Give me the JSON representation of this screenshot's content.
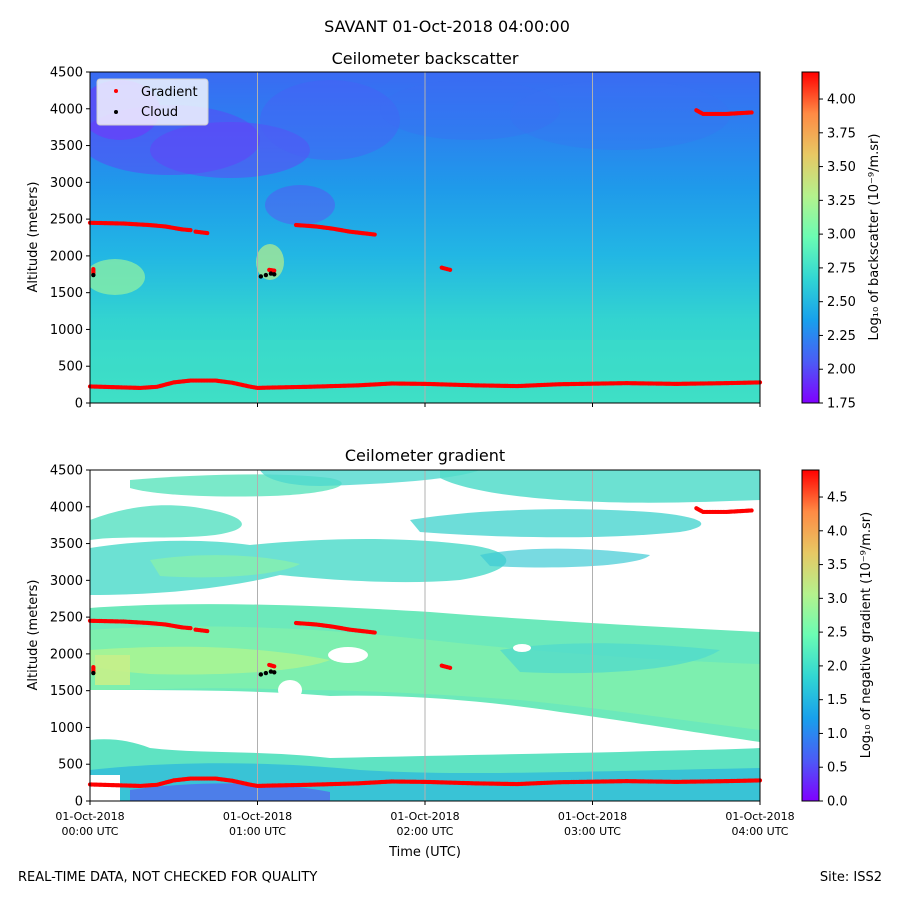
{
  "suptitle": "SAVANT 01-Oct-2018 04:00:00",
  "footer_left": "REAL-TIME DATA, NOT CHECKED FOR QUALITY",
  "footer_right": "Site: ISS2",
  "colors": {
    "gradient_marker": "#ff0000",
    "cloud_marker": "#000000",
    "gridline": "#b0b0b0",
    "colormap": [
      "#8000ff",
      "#4b5cf6",
      "#18a0ec",
      "#31d6d3",
      "#6afcb4",
      "#b4f28d",
      "#e7c864",
      "#ff8a44",
      "#ff0000"
    ]
  },
  "chart_data": [
    {
      "type": "heatmap",
      "title": "Ceilometer backscatter",
      "xlabel": "",
      "ylabel": "Altitude (meters)",
      "ylim": [
        0,
        4500
      ],
      "xlim_hours": [
        0,
        4
      ],
      "yticks": [
        "0",
        "500",
        "1000",
        "1500",
        "2000",
        "2500",
        "3000",
        "3500",
        "4000",
        "4500"
      ],
      "xticks": [
        0,
        1,
        2,
        3,
        4
      ],
      "grid_x": true,
      "colorbar": {
        "label": "Log₁₀ of backscatter (10⁻⁹/m.sr)",
        "range": [
          1.75,
          4.2
        ],
        "ticks": [
          "1.75",
          "2.00",
          "2.25",
          "2.50",
          "2.75",
          "3.00",
          "3.25",
          "3.50",
          "3.75",
          "4.00"
        ]
      },
      "legend": {
        "placement": "upper-left",
        "entries": [
          {
            "label": "Gradient",
            "color": "#ff0000"
          },
          {
            "label": "Cloud",
            "color": "#000000"
          }
        ]
      },
      "series": [
        {
          "name": "Gradient (boundary layer)",
          "points": [
            [
              0.0,
              225
            ],
            [
              0.15,
              215
            ],
            [
              0.3,
              205
            ],
            [
              0.4,
              220
            ],
            [
              0.5,
              280
            ],
            [
              0.6,
              305
            ],
            [
              0.75,
              305
            ],
            [
              0.85,
              275
            ],
            [
              0.95,
              225
            ],
            [
              1.0,
              205
            ],
            [
              1.08,
              210
            ],
            [
              1.3,
              220
            ],
            [
              1.6,
              240
            ],
            [
              1.8,
              265
            ],
            [
              2.0,
              260
            ],
            [
              2.3,
              240
            ],
            [
              2.55,
              230
            ],
            [
              2.8,
              255
            ],
            [
              3.2,
              270
            ],
            [
              3.5,
              260
            ],
            [
              3.8,
              270
            ],
            [
              4.0,
              280
            ]
          ]
        },
        {
          "name": "Gradient (upper layer a)",
          "points": [
            [
              0.0,
              2450
            ],
            [
              0.2,
              2440
            ],
            [
              0.35,
              2420
            ],
            [
              0.45,
              2400
            ],
            [
              0.55,
              2360
            ],
            [
              0.6,
              2350
            ]
          ]
        },
        {
          "name": "Gradient (upper layer b)",
          "points": [
            [
              0.63,
              2330
            ],
            [
              0.7,
              2310
            ]
          ]
        },
        {
          "name": "Gradient (upper layer c)",
          "points": [
            [
              1.23,
              2420
            ],
            [
              1.35,
              2400
            ],
            [
              1.45,
              2370
            ],
            [
              1.55,
              2330
            ],
            [
              1.7,
              2290
            ]
          ]
        },
        {
          "name": "Gradient (mid)",
          "points": [
            [
              1.07,
              1810
            ],
            [
              1.1,
              1800
            ]
          ]
        },
        {
          "name": "Gradient (residual)",
          "points": [
            [
              2.1,
              1840
            ],
            [
              2.15,
              1810
            ]
          ]
        },
        {
          "name": "Gradient (high)",
          "points": [
            [
              3.62,
              3980
            ],
            [
              3.66,
              3930
            ],
            [
              3.8,
              3930
            ],
            [
              3.95,
              3950
            ]
          ]
        },
        {
          "name": "Gradient (start)",
          "points": [
            [
              0.02,
              1820
            ],
            [
              0.02,
              1760
            ]
          ]
        }
      ],
      "cloud": [
        [
          0.02,
          1740
        ],
        [
          1.02,
          1720
        ],
        [
          1.05,
          1740
        ],
        [
          1.08,
          1760
        ],
        [
          1.1,
          1750
        ]
      ]
    },
    {
      "type": "heatmap",
      "title": "Ceilometer gradient",
      "xlabel": "Time (UTC)",
      "ylabel": "Altitude (meters)",
      "ylim": [
        0,
        4500
      ],
      "xlim_hours": [
        0,
        4
      ],
      "yticks": [
        "0",
        "500",
        "1000",
        "1500",
        "2000",
        "2500",
        "3000",
        "3500",
        "4000",
        "4500"
      ],
      "xticks": [
        0,
        1,
        2,
        3,
        4
      ],
      "xtick_labels": [
        [
          "01-Oct-2018",
          "00:00 UTC"
        ],
        [
          "01-Oct-2018",
          "01:00 UTC"
        ],
        [
          "01-Oct-2018",
          "02:00 UTC"
        ],
        [
          "01-Oct-2018",
          "03:00 UTC"
        ],
        [
          "01-Oct-2018",
          "04:00 UTC"
        ]
      ],
      "grid_x": true,
      "colorbar": {
        "label": "Log₁₀ of negative gradient (10⁻⁹/m.sr)",
        "range": [
          0.0,
          4.9
        ],
        "ticks": [
          "0.0",
          "0.5",
          "1.0",
          "1.5",
          "2.0",
          "2.5",
          "3.0",
          "3.5",
          "4.0",
          "4.5"
        ]
      },
      "series": [
        {
          "name": "Gradient (boundary layer)",
          "points": [
            [
              0.0,
              225
            ],
            [
              0.15,
              215
            ],
            [
              0.3,
              205
            ],
            [
              0.4,
              220
            ],
            [
              0.5,
              280
            ],
            [
              0.6,
              305
            ],
            [
              0.75,
              305
            ],
            [
              0.85,
              275
            ],
            [
              0.95,
              225
            ],
            [
              1.0,
              205
            ],
            [
              1.08,
              210
            ],
            [
              1.3,
              220
            ],
            [
              1.6,
              240
            ],
            [
              1.8,
              265
            ],
            [
              2.0,
              260
            ],
            [
              2.3,
              240
            ],
            [
              2.55,
              230
            ],
            [
              2.8,
              255
            ],
            [
              3.2,
              270
            ],
            [
              3.5,
              260
            ],
            [
              3.8,
              270
            ],
            [
              4.0,
              280
            ]
          ]
        },
        {
          "name": "Gradient (upper layer a)",
          "points": [
            [
              0.0,
              2450
            ],
            [
              0.2,
              2440
            ],
            [
              0.35,
              2420
            ],
            [
              0.45,
              2400
            ],
            [
              0.55,
              2360
            ],
            [
              0.6,
              2350
            ]
          ]
        },
        {
          "name": "Gradient (upper layer b)",
          "points": [
            [
              0.63,
              2330
            ],
            [
              0.7,
              2310
            ]
          ]
        },
        {
          "name": "Gradient (upper layer c)",
          "points": [
            [
              1.23,
              2420
            ],
            [
              1.35,
              2400
            ],
            [
              1.45,
              2370
            ],
            [
              1.55,
              2330
            ],
            [
              1.7,
              2290
            ]
          ]
        },
        {
          "name": "Gradient (mid)",
          "points": [
            [
              1.07,
              1850
            ],
            [
              1.1,
              1830
            ]
          ]
        },
        {
          "name": "Gradient (residual)",
          "points": [
            [
              2.1,
              1840
            ],
            [
              2.15,
              1810
            ]
          ]
        },
        {
          "name": "Gradient (high)",
          "points": [
            [
              3.62,
              3980
            ],
            [
              3.66,
              3930
            ],
            [
              3.8,
              3930
            ],
            [
              3.95,
              3950
            ]
          ]
        },
        {
          "name": "Gradient (start)",
          "points": [
            [
              0.02,
              1820
            ],
            [
              0.02,
              1760
            ]
          ]
        }
      ],
      "cloud": [
        [
          0.02,
          1740
        ],
        [
          1.02,
          1720
        ],
        [
          1.05,
          1740
        ],
        [
          1.08,
          1760
        ],
        [
          1.1,
          1750
        ]
      ]
    }
  ]
}
